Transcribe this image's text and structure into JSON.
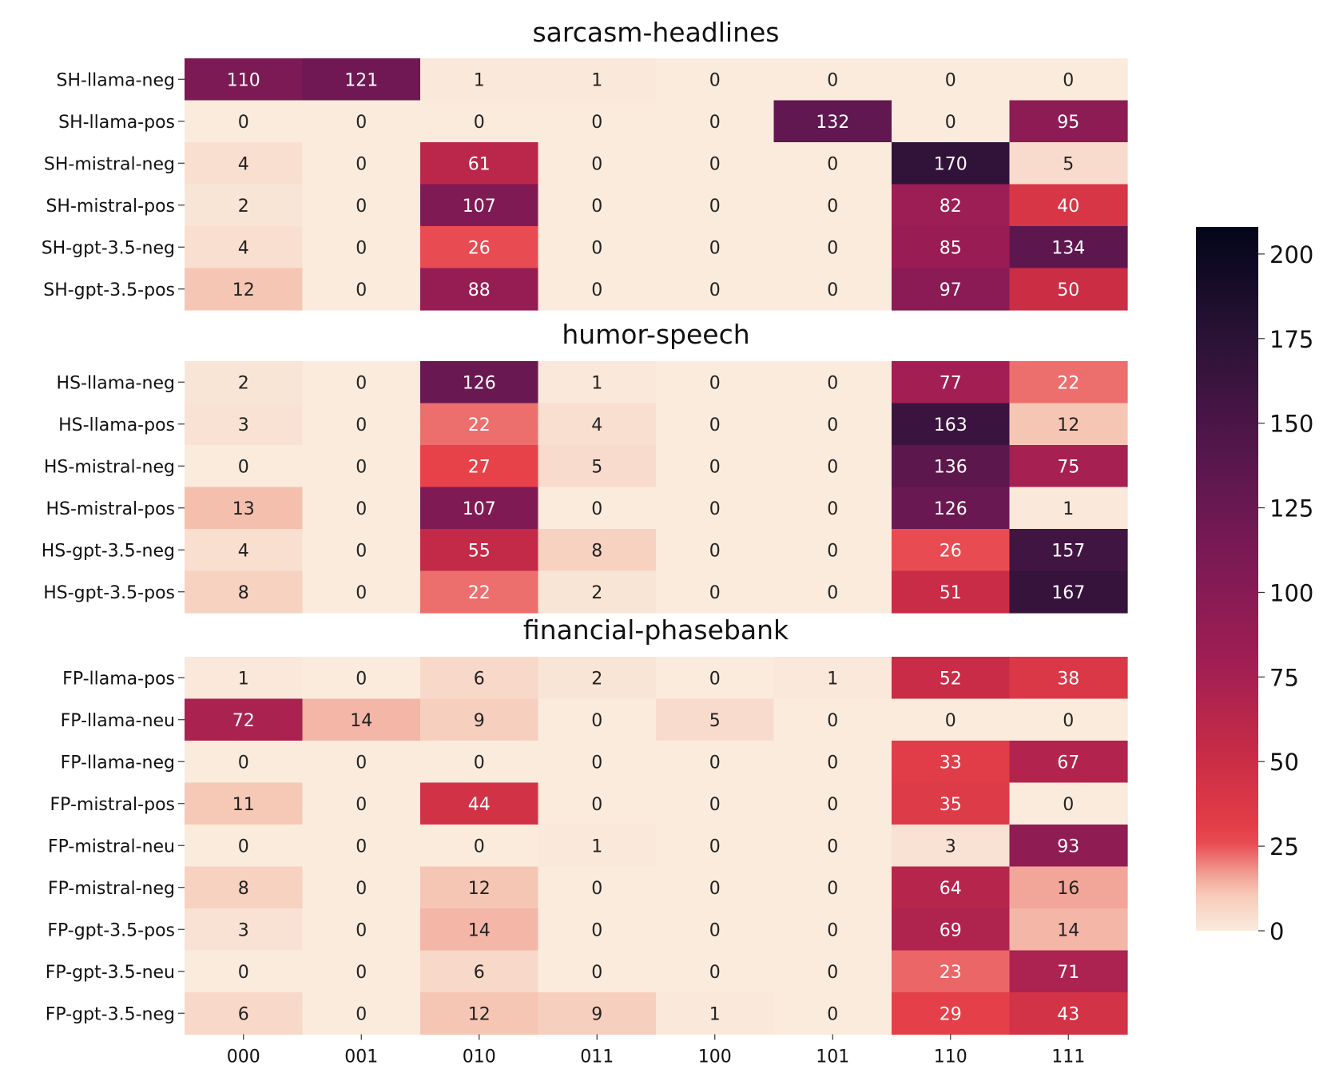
{
  "chart_data": {
    "type": "heatmap",
    "columns": [
      "000",
      "001",
      "010",
      "011",
      "100",
      "101",
      "110",
      "111"
    ],
    "colorbar": {
      "min": 0,
      "max": 208,
      "ticks": [
        0,
        25,
        50,
        75,
        100,
        125,
        150,
        175,
        200
      ]
    },
    "panels": [
      {
        "title": "sarcasm-headlines",
        "rows": [
          "SH-llama-neg",
          "SH-llama-pos",
          "SH-mistral-neg",
          "SH-mistral-pos",
          "SH-gpt-3.5-neg",
          "SH-gpt-3.5-pos"
        ],
        "values": [
          [
            110,
            121,
            1,
            1,
            0,
            0,
            0,
            0
          ],
          [
            0,
            0,
            0,
            0,
            0,
            132,
            0,
            95
          ],
          [
            4,
            0,
            61,
            0,
            0,
            0,
            170,
            5
          ],
          [
            2,
            0,
            107,
            0,
            0,
            0,
            82,
            40
          ],
          [
            4,
            0,
            26,
            0,
            0,
            0,
            85,
            134
          ],
          [
            12,
            0,
            88,
            0,
            0,
            0,
            97,
            50
          ]
        ]
      },
      {
        "title": "humor-speech",
        "rows": [
          "HS-llama-neg",
          "HS-llama-pos",
          "HS-mistral-neg",
          "HS-mistral-pos",
          "HS-gpt-3.5-neg",
          "HS-gpt-3.5-pos"
        ],
        "values": [
          [
            2,
            0,
            126,
            1,
            0,
            0,
            77,
            22
          ],
          [
            3,
            0,
            22,
            4,
            0,
            0,
            163,
            12
          ],
          [
            0,
            0,
            27,
            5,
            0,
            0,
            136,
            75
          ],
          [
            13,
            0,
            107,
            0,
            0,
            0,
            126,
            1
          ],
          [
            4,
            0,
            55,
            8,
            0,
            0,
            26,
            157
          ],
          [
            8,
            0,
            22,
            2,
            0,
            0,
            51,
            167
          ]
        ]
      },
      {
        "title": "financial-phasebank",
        "rows": [
          "FP-llama-pos",
          "FP-llama-neu",
          "FP-llama-neg",
          "FP-mistral-pos",
          "FP-mistral-neu",
          "FP-mistral-neg",
          "FP-gpt-3.5-pos",
          "FP-gpt-3.5-neu",
          "FP-gpt-3.5-neg"
        ],
        "values": [
          [
            1,
            0,
            6,
            2,
            0,
            1,
            52,
            38
          ],
          [
            72,
            14,
            9,
            0,
            5,
            0,
            0,
            0
          ],
          [
            0,
            0,
            0,
            0,
            0,
            0,
            33,
            67
          ],
          [
            11,
            0,
            44,
            0,
            0,
            0,
            35,
            0
          ],
          [
            0,
            0,
            0,
            1,
            0,
            0,
            3,
            93
          ],
          [
            8,
            0,
            12,
            0,
            0,
            0,
            64,
            16
          ],
          [
            3,
            0,
            14,
            0,
            0,
            0,
            69,
            14
          ],
          [
            0,
            0,
            6,
            0,
            0,
            0,
            23,
            71
          ],
          [
            6,
            0,
            12,
            9,
            1,
            0,
            29,
            43
          ]
        ]
      }
    ]
  }
}
